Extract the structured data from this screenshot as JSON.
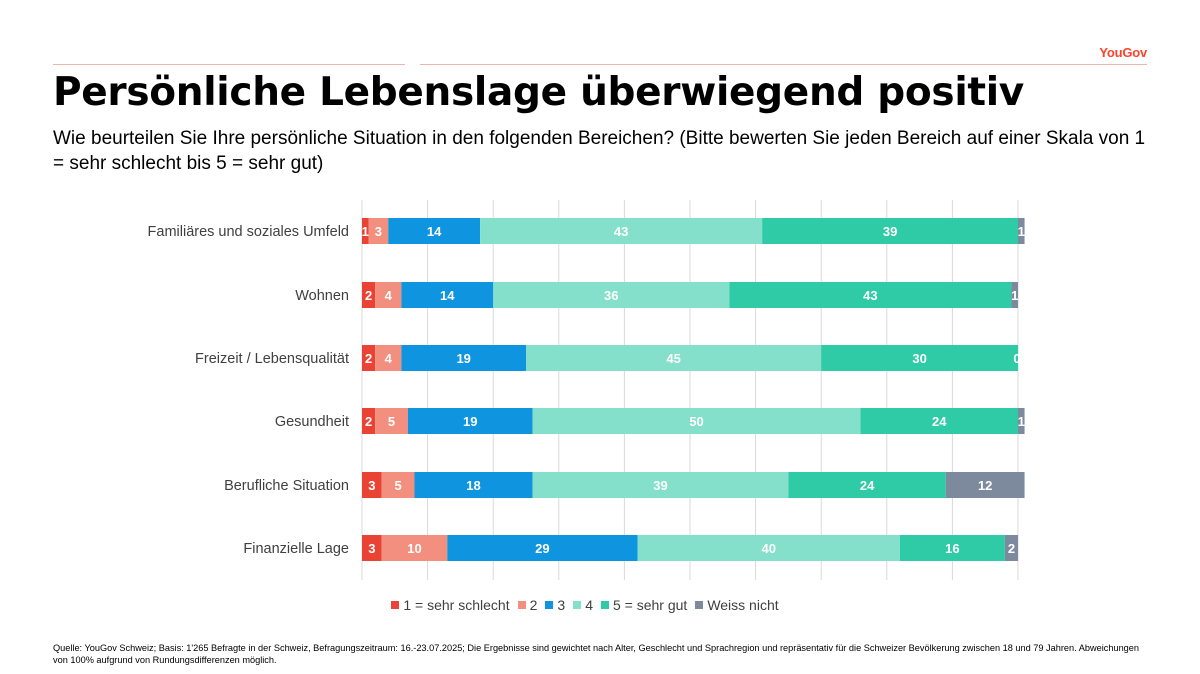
{
  "brand": {
    "logo_text": "YouGov",
    "accent_color": "#ff412c"
  },
  "title": "Persönliche Lebenslage überwiegend positiv",
  "subtitle": "Wie beurteilen Sie Ihre persönliche Situation in den folgenden Bereichen? (Bitte bewerten Sie jeden Bereich auf einer Skala von 1 = sehr schlecht bis 5 = sehr gut)",
  "footnote": "Quelle: YouGov Schweiz; Basis: 1'265 Befragte in der Schweiz, Befragungszeitraum: 16.-23.07.2025; Die Ergebnisse sind gewichtet nach Alter, Geschlecht und Sprachregion und repräsentativ für die Schweizer Bevölkerung zwischen 18 und 79 Jahren. Abweichungen von 100% aufgrund von Rundungsdifferenzen möglich.",
  "chart_data": {
    "type": "bar",
    "orientation": "horizontal",
    "stacked": true,
    "xlim": [
      0,
      100
    ],
    "grid": true,
    "legend_position": "bottom",
    "categories": [
      "Familiäres und soziales Umfeld",
      "Wohnen",
      "Freizeit / Lebensqualität",
      "Gesundheit",
      "Berufliche Situation",
      "Finanzielle Lage"
    ],
    "series": [
      {
        "name": "1 = sehr schlecht",
        "color": "#ea4335",
        "values": [
          1,
          2,
          2,
          2,
          3,
          3
        ]
      },
      {
        "name": "2",
        "color": "#f28f7f",
        "values": [
          3,
          4,
          4,
          5,
          5,
          10
        ]
      },
      {
        "name": "3",
        "color": "#0f95e0",
        "values": [
          14,
          14,
          19,
          19,
          18,
          29
        ]
      },
      {
        "name": "4",
        "color": "#84e0cb",
        "values": [
          43,
          36,
          45,
          50,
          39,
          40
        ]
      },
      {
        "name": "5 = sehr gut",
        "color": "#2ecba6",
        "values": [
          39,
          43,
          30,
          24,
          24,
          16
        ]
      },
      {
        "name": "Weiss nicht",
        "color": "#7d8a9e",
        "values": [
          1,
          1,
          0,
          1,
          12,
          2
        ]
      }
    ]
  }
}
